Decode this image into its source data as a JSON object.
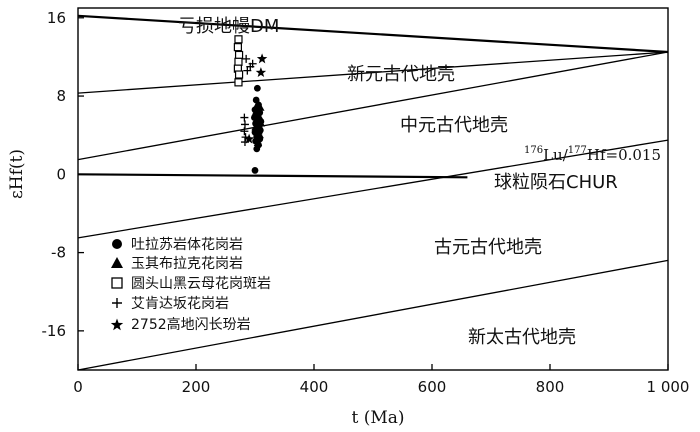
{
  "chart_data": {
    "type": "scatter",
    "xlabel": "t (Ma)",
    "ylabel": "εHf(t)",
    "xlim": [
      0,
      1000
    ],
    "ylim": [
      -20,
      17
    ],
    "x_ticks": [
      0,
      200,
      400,
      600,
      800,
      1000
    ],
    "x_tick_labels": [
      "0",
      "200",
      "400",
      "600",
      "800",
      "1 000"
    ],
    "y_ticks": [
      -16,
      -8,
      0,
      8,
      16
    ],
    "y_tick_labels": [
      "-16",
      "-8",
      "0",
      "8",
      "16"
    ],
    "grid": false,
    "legend_position": "bottom-left",
    "reference_lines": [
      {
        "name": "亏损地幔DM",
        "x": [
          0,
          1000
        ],
        "y": [
          16.2,
          12.5
        ],
        "bold": true
      },
      {
        "name": "球粒陨石CHUR",
        "x": [
          0,
          660
        ],
        "y": [
          0,
          -0.3
        ],
        "bold": true
      },
      {
        "name": "176Lu/177Hf=0.015",
        "x": [
          0,
          1000
        ],
        "y": [
          8.3,
          12.5
        ]
      },
      {
        "name": "",
        "x": [
          0,
          1000
        ],
        "y": [
          1.5,
          12.5
        ]
      },
      {
        "name": "",
        "x": [
          0,
          1000
        ],
        "y": [
          -6.5,
          3.5
        ]
      },
      {
        "name": "",
        "x": [
          0,
          1000
        ],
        "y": [
          -20,
          -8.8
        ]
      }
    ],
    "region_labels": [
      "亏损地幔DM",
      "新元古代地壳",
      "中元古代地壳",
      "球粒陨石CHUR",
      "古元古代地壳",
      "新太古代地壳"
    ],
    "line_annotation": {
      "sup1": "176",
      "part1": "Lu/",
      "sup2": "177",
      "part2": "Hf=0.015"
    },
    "series": [
      {
        "name": "吐拉苏岩体花岗岩",
        "marker": "circle",
        "points": [
          [
            304,
            8.8
          ],
          [
            302,
            7.6
          ],
          [
            306,
            7.1
          ],
          [
            300,
            6.6
          ],
          [
            308,
            6.3
          ],
          [
            303,
            6.0
          ],
          [
            299,
            5.8
          ],
          [
            305,
            5.6
          ],
          [
            310,
            5.4
          ],
          [
            301,
            5.2
          ],
          [
            304,
            5.0
          ],
          [
            307,
            4.8
          ],
          [
            302,
            4.6
          ],
          [
            309,
            4.5
          ],
          [
            300,
            4.3
          ],
          [
            305,
            4.1
          ],
          [
            303,
            3.9
          ],
          [
            308,
            3.6
          ],
          [
            301,
            3.4
          ],
          [
            306,
            3.0
          ],
          [
            303,
            2.6
          ],
          [
            300,
            0.4
          ]
        ]
      },
      {
        "name": "玉其布拉克花岗岩",
        "marker": "triangle",
        "points": [
          [
            305,
            7.2
          ],
          [
            309,
            6.8
          ],
          [
            302,
            6.4
          ],
          [
            307,
            5.9
          ],
          [
            304,
            5.5
          ],
          [
            310,
            5.2
          ],
          [
            301,
            4.8
          ],
          [
            306,
            4.4
          ],
          [
            308,
            4.0
          ],
          [
            303,
            3.6
          ],
          [
            305,
            3.2
          ]
        ]
      },
      {
        "name": "圆头山黑云母花岗斑岩",
        "marker": "square",
        "points": [
          [
            272,
            13.8
          ],
          [
            271,
            13.0
          ],
          [
            273,
            12.2
          ],
          [
            272,
            11.5
          ],
          [
            271,
            10.8
          ],
          [
            273,
            10.2
          ],
          [
            272,
            9.4
          ]
        ]
      },
      {
        "name": "艾肯达坂花岗岩",
        "marker": "plus",
        "points": [
          [
            285,
            11.8
          ],
          [
            292,
            11.0
          ],
          [
            287,
            10.6
          ],
          [
            296,
            11.3
          ],
          [
            282,
            5.8
          ],
          [
            283,
            5.1
          ],
          [
            282,
            4.4
          ],
          [
            284,
            3.8
          ],
          [
            283,
            3.3
          ]
        ]
      },
      {
        "name": "2752高地闪长玢岩",
        "marker": "star",
        "points": [
          [
            312,
            11.8
          ],
          [
            310,
            10.4
          ],
          [
            290,
            3.6
          ]
        ]
      }
    ]
  }
}
